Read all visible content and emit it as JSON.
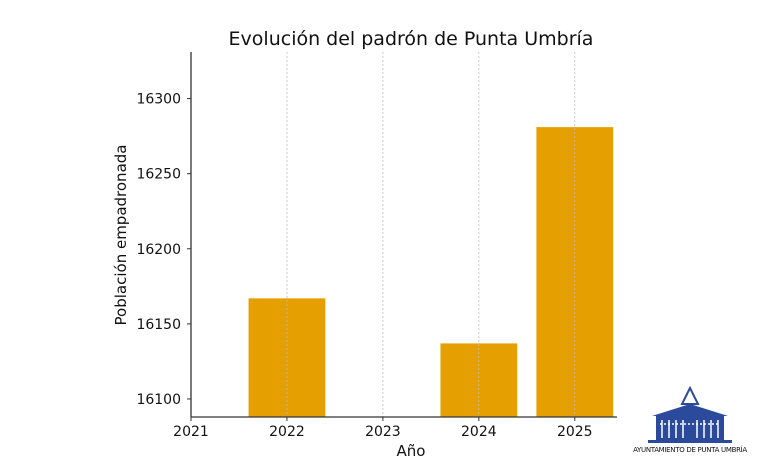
{
  "chart_data": {
    "type": "bar",
    "title": "Evolución del padrón de Punta Umbría",
    "xlabel": "Año",
    "ylabel": "Población empadronada",
    "categories": [
      2022,
      2024,
      2025
    ],
    "values": [
      16167,
      16137,
      16281
    ],
    "xticks": [
      "2021",
      "2022",
      "2023",
      "2024",
      "2025"
    ],
    "yticks": [
      "16100",
      "16150",
      "16200",
      "16250",
      "16300"
    ],
    "xlim": [
      2021,
      2025.44
    ],
    "ylim": [
      16088,
      16331
    ],
    "grid": "vertical dashed",
    "bar_color": "#E5A000"
  },
  "logo": {
    "text": "AYUNTAMIENTO DE PUNTA UMBRÍA",
    "color": "#2b4a9c"
  }
}
